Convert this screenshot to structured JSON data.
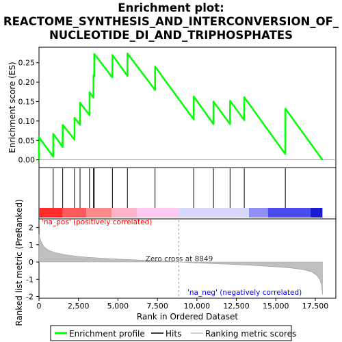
{
  "title_lines": [
    "Enrichment plot:",
    "REACTOME_SYNTHESIS_AND_INTERCONVERSION_OF_",
    "NUCLEOTIDE_DI_AND_TRIPHOSPHATES"
  ],
  "colors": {
    "enrichment_line": "#00ff00",
    "hit_line": "#000000",
    "metric_fill": "#bfbfbf",
    "zero_cross_line": "#a0a0a0",
    "pos_label": "#ff0000",
    "neg_label": "#0000ff"
  },
  "labels": {
    "na_pos": "'na_pos' (positively correlated)",
    "na_neg": "'na_neg' (negatively correlated)",
    "zero_cross": "Zero cross at 8849"
  },
  "legend": {
    "enrichment": "Enrichment profile",
    "hits": "Hits",
    "ranking": "Ranking metric scores"
  },
  "chart_data": [
    {
      "type": "line",
      "name": "enrichment-profile",
      "ylabel": "Enrichment score (ES)",
      "xlim": [
        0,
        18800
      ],
      "ylim": [
        -0.02,
        0.29
      ],
      "yticks": [
        0.0,
        0.05,
        0.1,
        0.15,
        0.2,
        0.25
      ],
      "ytick_labels": [
        "0.00",
        "0.05",
        "0.10",
        "0.15",
        "0.20",
        "0.25"
      ],
      "points": [
        [
          0,
          0.0
        ],
        [
          1,
          0.058
        ],
        [
          900,
          0.008
        ],
        [
          901,
          0.067
        ],
        [
          1500,
          0.033
        ],
        [
          1501,
          0.09
        ],
        [
          2250,
          0.052
        ],
        [
          2251,
          0.108
        ],
        [
          2600,
          0.09
        ],
        [
          2601,
          0.147
        ],
        [
          3200,
          0.115
        ],
        [
          3201,
          0.174
        ],
        [
          3450,
          0.16
        ],
        [
          3451,
          0.218
        ],
        [
          3500,
          0.215
        ],
        [
          3501,
          0.273
        ],
        [
          4650,
          0.212
        ],
        [
          4651,
          0.27
        ],
        [
          5600,
          0.216
        ],
        [
          5601,
          0.274
        ],
        [
          7350,
          0.18
        ],
        [
          7351,
          0.24
        ],
        [
          9800,
          0.104
        ],
        [
          9801,
          0.163
        ],
        [
          11050,
          0.092
        ],
        [
          11051,
          0.15
        ],
        [
          12100,
          0.092
        ],
        [
          12101,
          0.152
        ],
        [
          13000,
          0.102
        ],
        [
          13001,
          0.161
        ],
        [
          15600,
          0.015
        ],
        [
          15601,
          0.075
        ],
        [
          15602,
          0.132
        ],
        [
          17950,
          0.0
        ]
      ],
      "grid": false
    },
    {
      "type": "scatter",
      "name": "hits",
      "x": [
        0,
        900,
        1500,
        2250,
        2600,
        3200,
        3450,
        3500,
        4650,
        5600,
        7350,
        9800,
        11050,
        12100,
        13000,
        15600
      ]
    },
    {
      "type": "area",
      "name": "ranking-metric",
      "ylabel": "Ranked list metric (PreRanked)",
      "xlabel": "Rank in Ordered Dataset",
      "xlim": [
        0,
        18800
      ],
      "ylim": [
        -2.1,
        2.5
      ],
      "yticks": [
        -2,
        -1,
        0,
        1,
        2
      ],
      "xticks": [
        0,
        2500,
        5000,
        7500,
        10000,
        12500,
        15000,
        17500
      ],
      "xtick_labels": [
        "0",
        "2,500",
        "5,000",
        "7,500",
        "10,000",
        "12,500",
        "15,000",
        "17,500"
      ],
      "zero_cross": 8849,
      "points": [
        [
          0,
          1.6
        ],
        [
          100,
          1.25
        ],
        [
          300,
          0.9
        ],
        [
          600,
          0.68
        ],
        [
          1000,
          0.55
        ],
        [
          1500,
          0.45
        ],
        [
          2000,
          0.38
        ],
        [
          3000,
          0.28
        ],
        [
          4000,
          0.22
        ],
        [
          5000,
          0.17
        ],
        [
          6000,
          0.13
        ],
        [
          7000,
          0.09
        ],
        [
          8000,
          0.05
        ],
        [
          8849,
          0.0
        ],
        [
          10000,
          -0.05
        ],
        [
          11000,
          -0.09
        ],
        [
          12000,
          -0.13
        ],
        [
          13000,
          -0.17
        ],
        [
          14000,
          -0.22
        ],
        [
          15000,
          -0.28
        ],
        [
          16000,
          -0.35
        ],
        [
          16800,
          -0.45
        ],
        [
          17300,
          -0.58
        ],
        [
          17600,
          -0.78
        ],
        [
          17800,
          -1.05
        ],
        [
          17900,
          -1.35
        ],
        [
          17950,
          -1.9
        ]
      ]
    }
  ],
  "colorbar": [
    {
      "x0": 0,
      "x1": 1500,
      "color": "#ff2a2a"
    },
    {
      "x0": 1500,
      "x1": 3000,
      "color": "#ff5a5a"
    },
    {
      "x0": 3000,
      "x1": 4600,
      "color": "#ff8888"
    },
    {
      "x0": 4600,
      "x1": 6200,
      "color": "#ffb3c9"
    },
    {
      "x0": 6200,
      "x1": 8849,
      "color": "#fccaef"
    },
    {
      "x0": 8849,
      "x1": 13300,
      "color": "#d8d8fa"
    },
    {
      "x0": 13300,
      "x1": 14500,
      "color": "#8f8ff5"
    },
    {
      "x0": 14500,
      "x1": 17200,
      "color": "#4c4cee"
    },
    {
      "x0": 17200,
      "x1": 17950,
      "color": "#1a1ad4"
    }
  ]
}
